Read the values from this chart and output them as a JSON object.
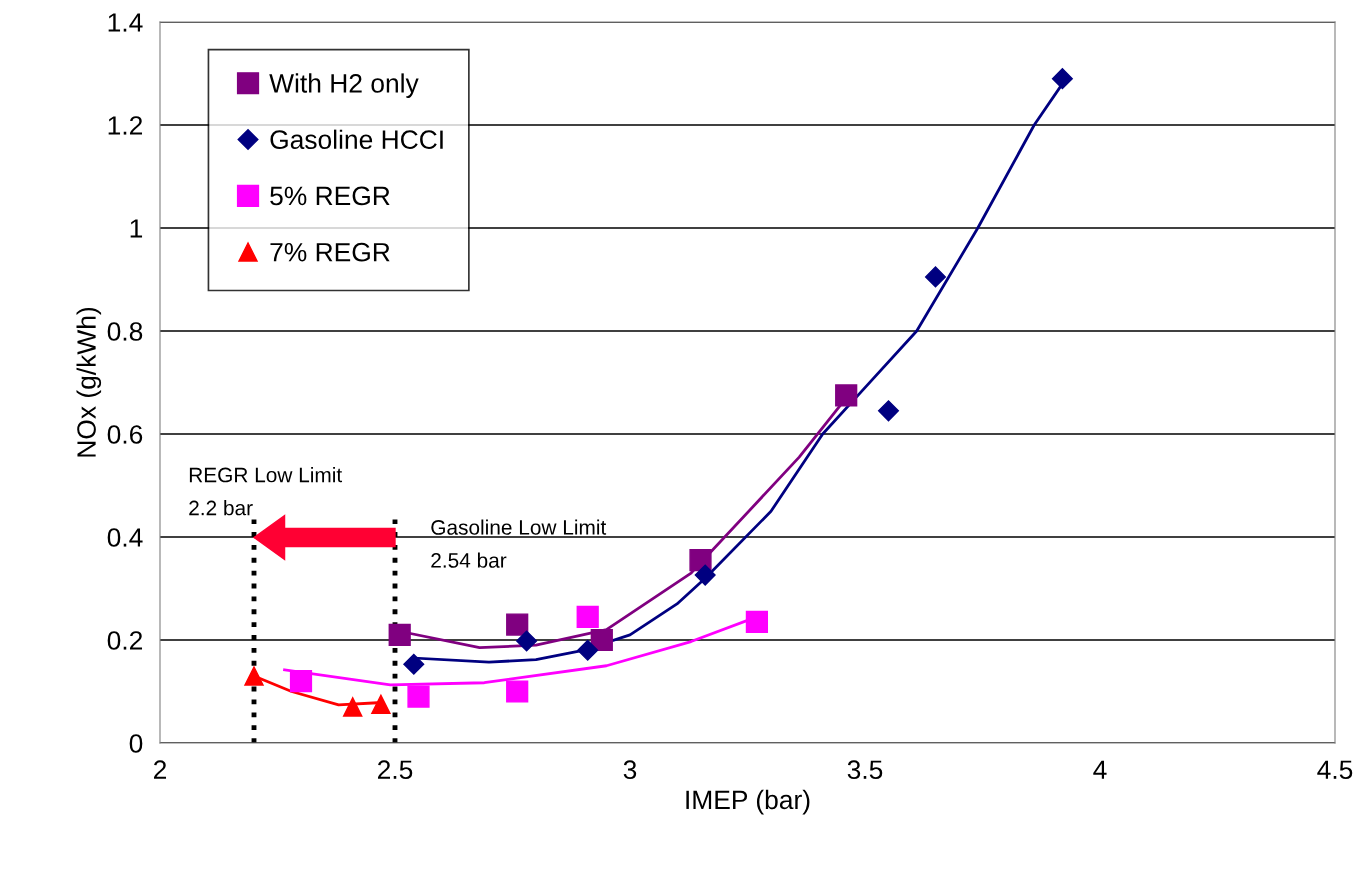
{
  "chart_data": {
    "type": "scatter",
    "xlabel": "IMEP (bar)",
    "ylabel": "NOx (g/kWh)",
    "xlim": [
      2,
      4.5
    ],
    "xticks": [
      2,
      2.5,
      3,
      3.5,
      4,
      4.5
    ],
    "ylim": [
      0,
      1.4
    ],
    "yticks": [
      0,
      0.2,
      0.4,
      0.6,
      0.8,
      1,
      1.2,
      1.4
    ],
    "grid": "y",
    "legend": "top left",
    "series": [
      {
        "name": "With H2 only",
        "color": "#800080",
        "marker": "square",
        "x": [
          2.51,
          2.76,
          2.94,
          3.15,
          3.46
        ],
        "values": [
          0.21,
          0.23,
          0.2,
          0.355,
          0.675
        ]
      },
      {
        "name": "Gasoline HCCI",
        "color": "#000080",
        "marker": "diamond",
        "x": [
          2.54,
          2.78,
          2.91,
          3.16,
          3.55,
          3.65,
          3.92
        ],
        "values": [
          0.153,
          0.198,
          0.18,
          0.326,
          0.645,
          0.905,
          1.29
        ]
      },
      {
        "name": "5% REGR",
        "color": "#ff00ff",
        "marker": "square",
        "x": [
          2.3,
          2.55,
          2.76,
          2.91,
          3.27
        ],
        "values": [
          0.12,
          0.09,
          0.1,
          0.245,
          0.235
        ]
      },
      {
        "name": "7% REGR",
        "color": "#ff0000",
        "marker": "triangle",
        "x": [
          2.2,
          2.41,
          2.47
        ],
        "values": [
          0.13,
          0.07,
          0.075
        ]
      },
      {
        "type": "line",
        "color": "#800080",
        "marker": "none",
        "x": [
          2.52,
          2.68,
          2.8,
          2.95,
          3.13,
          3.36,
          3.46
        ],
        "values": [
          0.215,
          0.185,
          0.19,
          0.22,
          0.33,
          0.555,
          0.67
        ]
      },
      {
        "type": "line",
        "color": "#000080",
        "marker": "none",
        "x": [
          2.54,
          2.7,
          2.8,
          2.9,
          3.0,
          3.1,
          3.16,
          3.3,
          3.41,
          3.5,
          3.61,
          3.74,
          3.86,
          3.92
        ],
        "values": [
          0.165,
          0.157,
          0.162,
          0.18,
          0.21,
          0.27,
          0.32,
          0.45,
          0.6,
          0.69,
          0.8,
          1.0,
          1.2,
          1.28
        ]
      },
      {
        "type": "line",
        "color": "#ff00ff",
        "marker": "none",
        "x": [
          2.265,
          2.49,
          2.69,
          2.95,
          3.13,
          3.27
        ],
        "values": [
          0.142,
          0.113,
          0.117,
          0.15,
          0.197,
          0.245
        ]
      },
      {
        "type": "line",
        "color": "#ff0000",
        "marker": "none",
        "x": [
          2.2,
          2.28,
          2.38,
          2.46
        ],
        "values": [
          0.13,
          0.1,
          0.074,
          0.078
        ]
      }
    ],
    "ref_lines": [
      {
        "axis": "x",
        "value": 2.2,
        "label": "REGR Low Limit\n2.2 bar",
        "color": "#000000",
        "line_style": "dotted"
      },
      {
        "axis": "x",
        "value": 2.5,
        "label": "Gasoline Low Limit\n2.54 bar",
        "color": "#000000",
        "line_style": "dotted"
      }
    ]
  }
}
